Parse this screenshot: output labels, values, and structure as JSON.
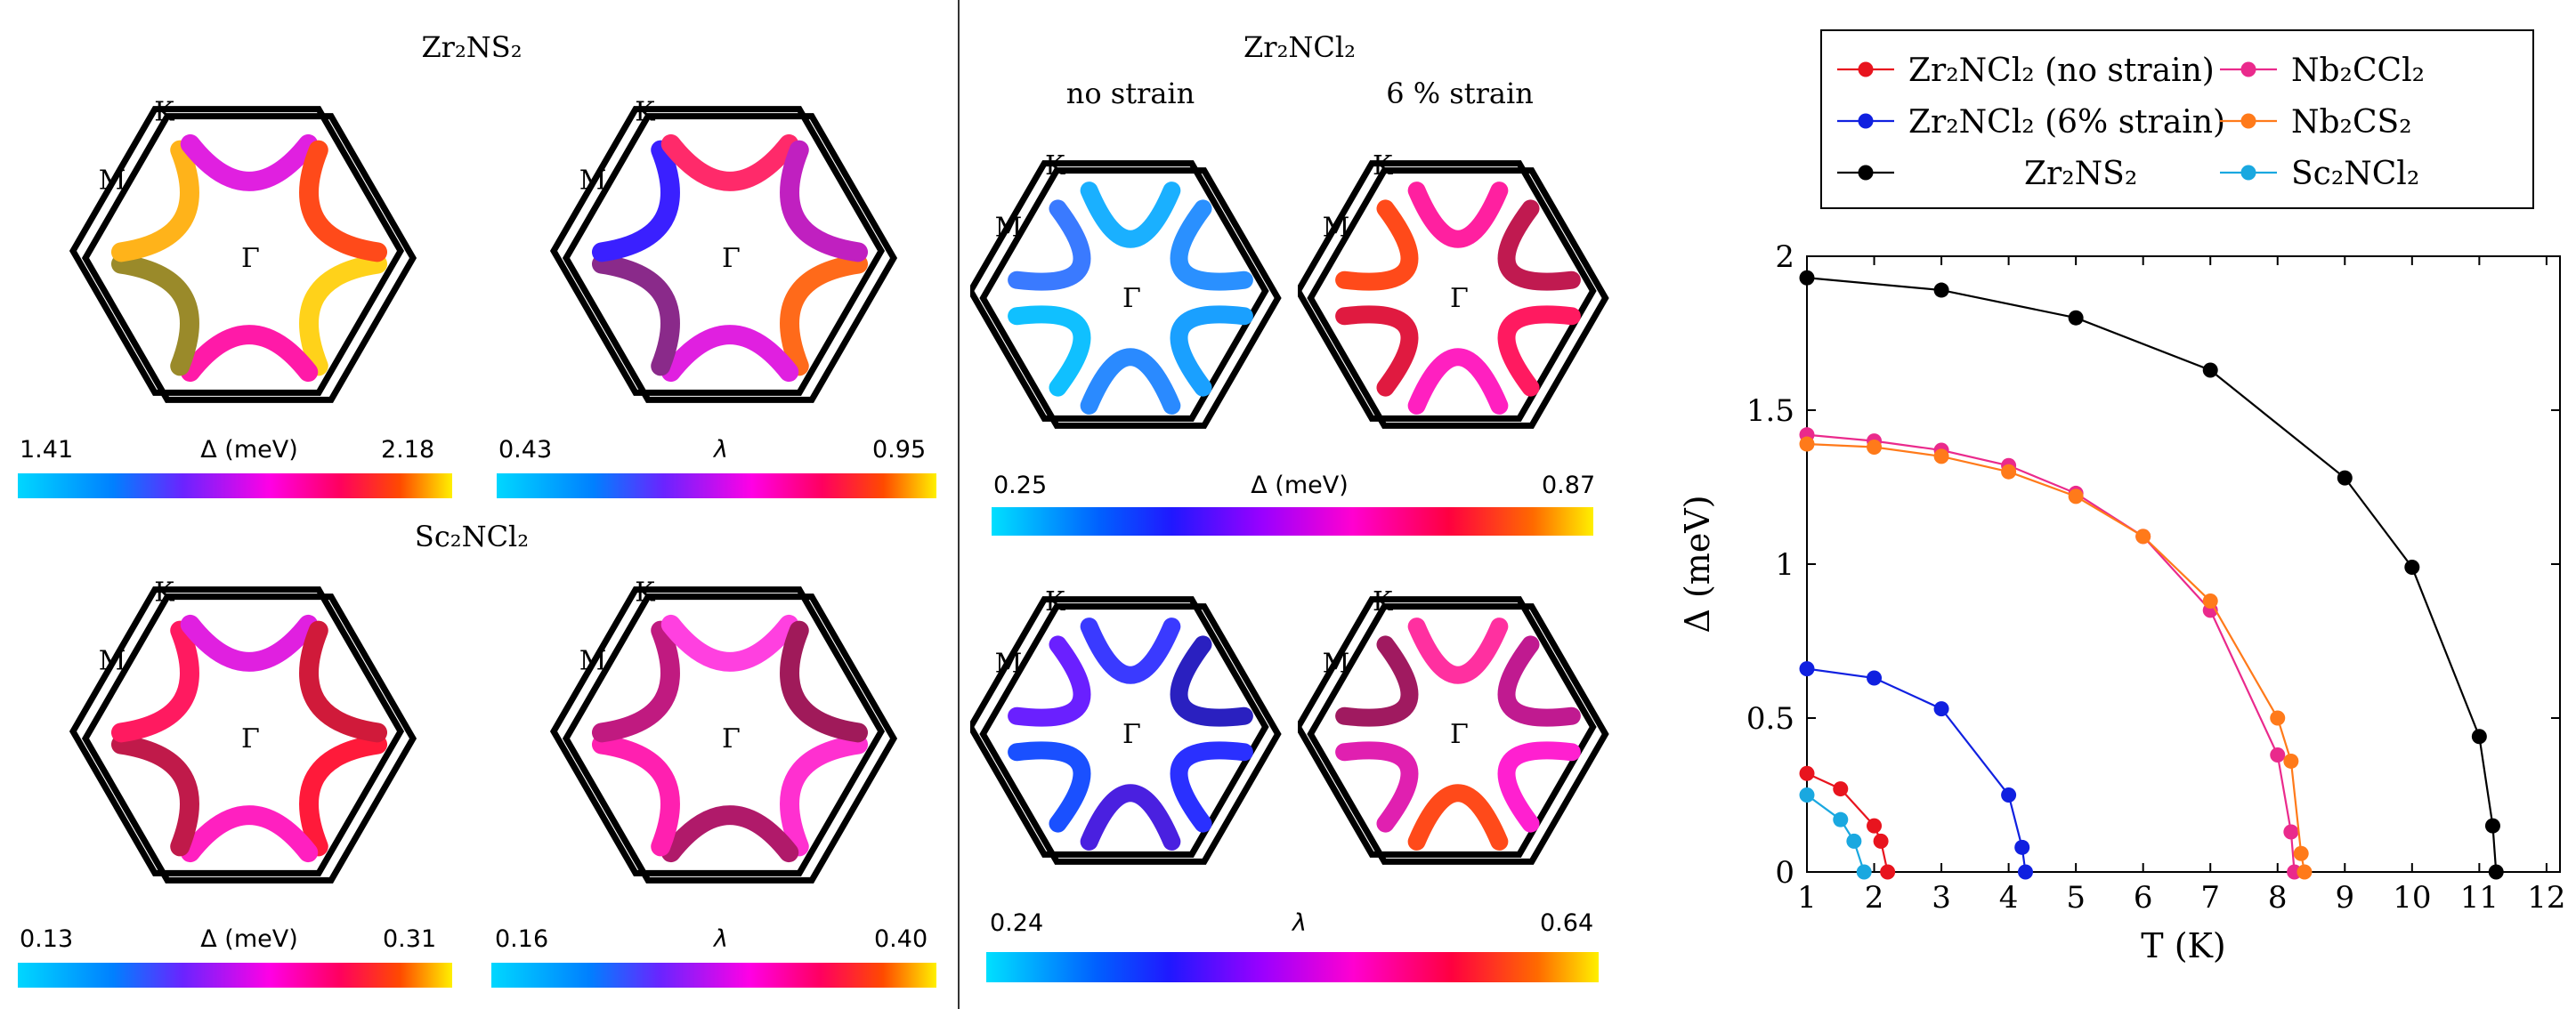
{
  "left_panels": {
    "zr2ns2_title": "Zr₂NS₂",
    "sc2ncl2_title": "Sc₂NCl₂",
    "bz_labels": {
      "K": "K",
      "M": "M",
      "Gamma": "Γ"
    },
    "colorbars": [
      {
        "min": "1.41",
        "label": "Δ (meV)",
        "max": "2.18"
      },
      {
        "min": "0.43",
        "label": "λ",
        "max": "0.95"
      },
      {
        "min": "0.13",
        "label": "Δ (meV)",
        "max": "0.31"
      },
      {
        "min": "0.16",
        "label": "λ",
        "max": "0.40"
      }
    ]
  },
  "middle_panel": {
    "title": "Zr₂NCl₂",
    "col1": "no strain",
    "col2": "6 % strain",
    "colorbars": [
      {
        "min": "0.25",
        "label": "Δ (meV)",
        "max": "0.87"
      },
      {
        "min": "0.24",
        "label": "λ",
        "max": "0.64"
      }
    ]
  },
  "chart_data": {
    "type": "line",
    "xlabel": "T (K)",
    "ylabel": "Δ (meV)",
    "xlim": [
      1,
      12.2
    ],
    "ylim": [
      0,
      2
    ],
    "xticks": [
      "1",
      "2",
      "3",
      "4",
      "5",
      "6",
      "7",
      "8",
      "9",
      "10",
      "11",
      "12"
    ],
    "yticks": [
      "0",
      "0.5",
      "1",
      "1.5",
      "2"
    ],
    "legend_position": "top",
    "series": [
      {
        "name": "Zr₂NCl₂ (no strain)",
        "color": "#e8141e",
        "x": [
          1,
          1.5,
          2,
          2.1,
          2.2
        ],
        "y": [
          0.32,
          0.27,
          0.15,
          0.1,
          0.0
        ]
      },
      {
        "name": "Zr₂NCl₂ (6% strain)",
        "color": "#1020e0",
        "x": [
          1,
          2,
          3,
          4,
          4.2,
          4.25
        ],
        "y": [
          0.66,
          0.63,
          0.53,
          0.25,
          0.08,
          0.0
        ]
      },
      {
        "name": "Zr₂NS₂",
        "color": "#000000",
        "x": [
          1,
          3,
          5,
          7,
          9,
          10,
          11,
          11.2,
          11.25
        ],
        "y": [
          1.93,
          1.89,
          1.8,
          1.63,
          1.28,
          0.99,
          0.44,
          0.15,
          0.0
        ]
      },
      {
        "name": "Nb₂CCl₂",
        "color": "#ea2a8c",
        "x": [
          1,
          2,
          3,
          4,
          5,
          6,
          7,
          8,
          8.2,
          8.25
        ],
        "y": [
          1.42,
          1.4,
          1.37,
          1.32,
          1.23,
          1.09,
          0.85,
          0.38,
          0.13,
          0.0
        ]
      },
      {
        "name": "Nb₂CS₂",
        "color": "#ff7a1a",
        "x": [
          1,
          2,
          3,
          4,
          5,
          6,
          7,
          8,
          8.2,
          8.35,
          8.4
        ],
        "y": [
          1.39,
          1.38,
          1.35,
          1.3,
          1.22,
          1.09,
          0.88,
          0.5,
          0.36,
          0.06,
          0.0
        ]
      },
      {
        "name": "Sc₂NCl₂",
        "color": "#1aa8e0",
        "x": [
          1,
          1.5,
          1.7,
          1.85
        ],
        "y": [
          0.25,
          0.17,
          0.1,
          0.0
        ]
      }
    ]
  }
}
